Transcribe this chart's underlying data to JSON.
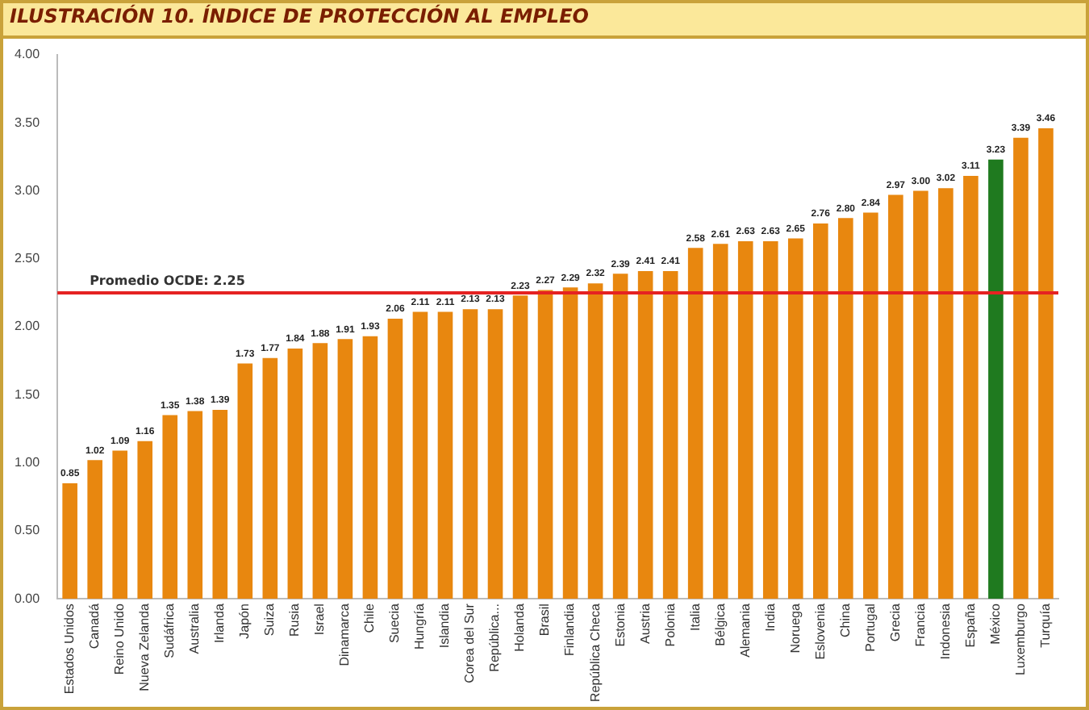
{
  "chart_data": {
    "type": "bar",
    "title": "ILUSTRACIÓN 10. ÍNDICE DE PROTECCIÓN AL EMPLEO",
    "categories": [
      "Estados Unidos",
      "Canadá",
      "Reino Unido",
      "Nueva Zelanda",
      "Sudáfrica",
      "Australia",
      "Irlanda",
      "Japón",
      "Suiza",
      "Rusia",
      "Israel",
      "Dinamarca",
      "Chile",
      "Suecia",
      "Hungría",
      "Islandia",
      "Corea del Sur",
      "República...",
      "Holanda",
      "Brasil",
      "Finlandia",
      "República Checa",
      "Estonia",
      "Austria",
      "Polonia",
      "Italia",
      "Bélgica",
      "Alemania",
      "India",
      "Noruega",
      "Eslovenia",
      "China",
      "Portugal",
      "Grecia",
      "Francia",
      "Indonesia",
      "España",
      "México",
      "Luxemburgo",
      "Turquía"
    ],
    "values": [
      0.85,
      1.02,
      1.09,
      1.16,
      1.35,
      1.38,
      1.39,
      1.73,
      1.77,
      1.84,
      1.88,
      1.91,
      1.93,
      2.06,
      2.11,
      2.11,
      2.13,
      2.13,
      2.23,
      2.27,
      2.29,
      2.32,
      2.39,
      2.41,
      2.41,
      2.58,
      2.61,
      2.63,
      2.63,
      2.65,
      2.76,
      2.8,
      2.84,
      2.97,
      3.0,
      3.02,
      3.11,
      3.23,
      3.39,
      3.46
    ],
    "value_labels": [
      "0.85",
      "1.02",
      "1.09",
      "1.16",
      "1.35",
      "1.38",
      "1.39",
      "1.73",
      "1.77",
      "1.84",
      "1.88",
      "1.91",
      "1.93",
      "2.06",
      "2.11",
      "2.11",
      "2.13",
      "2.13",
      "2.23",
      "2.27",
      "2.29",
      "2.32",
      "2.39",
      "2.41",
      "2.41",
      "2.58",
      "2.61",
      "2.63",
      "2.63",
      "2.65",
      "2.76",
      "2.80",
      "2.84",
      "2.97",
      "3.00",
      "3.02",
      "3.11",
      "3.23",
      "3.39",
      "3.46"
    ],
    "colors": [
      "#e8870f",
      "#e8870f",
      "#e8870f",
      "#e8870f",
      "#e8870f",
      "#e8870f",
      "#e8870f",
      "#e8870f",
      "#e8870f",
      "#e8870f",
      "#e8870f",
      "#e8870f",
      "#e8870f",
      "#e8870f",
      "#e8870f",
      "#e8870f",
      "#e8870f",
      "#e8870f",
      "#e8870f",
      "#e8870f",
      "#e8870f",
      "#e8870f",
      "#e8870f",
      "#e8870f",
      "#e8870f",
      "#e8870f",
      "#e8870f",
      "#e8870f",
      "#e8870f",
      "#e8870f",
      "#e8870f",
      "#e8870f",
      "#e8870f",
      "#e8870f",
      "#e8870f",
      "#e8870f",
      "#e8870f",
      "#1f7a1f",
      "#e8870f",
      "#e8870f"
    ],
    "ylim": [
      0,
      4
    ],
    "yticks": [
      {
        "value": 0,
        "label": "0.00"
      },
      {
        "value": 0.5,
        "label": "0.50"
      },
      {
        "value": 1,
        "label": "1.00"
      },
      {
        "value": 1.5,
        "label": "1.50"
      },
      {
        "value": 2,
        "label": "2.00"
      },
      {
        "value": 2.5,
        "label": "2.50"
      },
      {
        "value": 3,
        "label": "3.00"
      },
      {
        "value": 3.5,
        "label": "3.50"
      },
      {
        "value": 4,
        "label": "4.00"
      }
    ],
    "ref_lines": [
      {
        "axis": "y",
        "value": 2.25,
        "label": "Promedio OCDE: 2.25",
        "color": "#e52222"
      }
    ],
    "grid": false,
    "legend": false
  }
}
